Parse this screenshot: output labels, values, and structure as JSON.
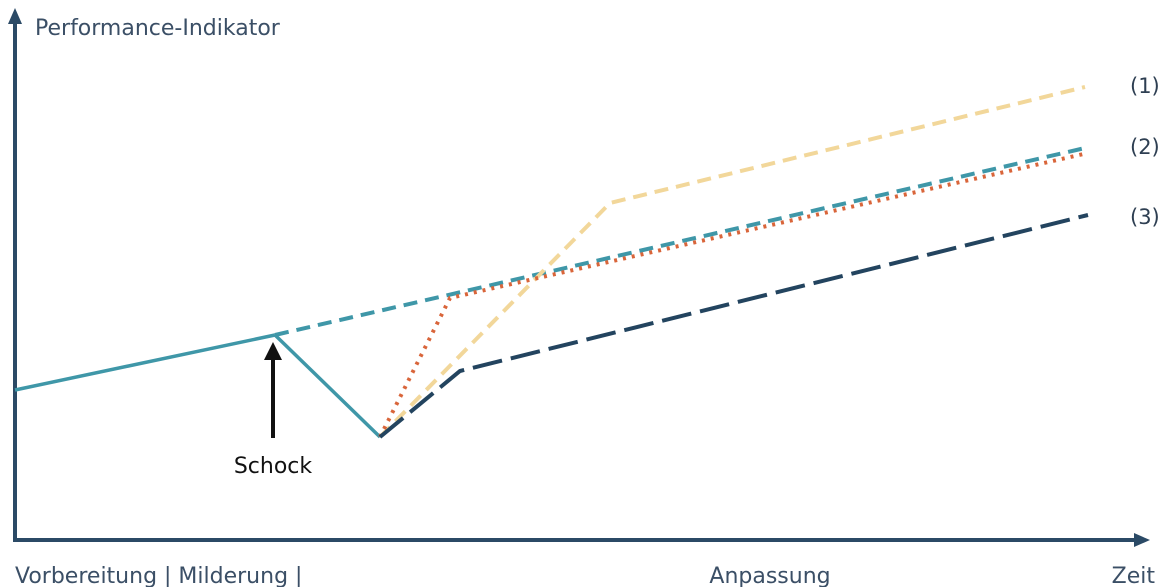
{
  "colors": {
    "axis": "#2b4a66",
    "teal": "#3f97a8",
    "beige": "#f2d79a",
    "orange": "#d9653a",
    "navy": "#23445f",
    "arrow": "#111111"
  },
  "diagram": {
    "y_axis_label": "Performance-Indikator",
    "x_axis_label": "Zeit",
    "phases": {
      "left": "Vorbereitung | Milderung |",
      "right": "Anpassung"
    },
    "shock_label": "Schock",
    "curve_labels": [
      "(1)",
      "(2)",
      "(3)"
    ]
  }
}
